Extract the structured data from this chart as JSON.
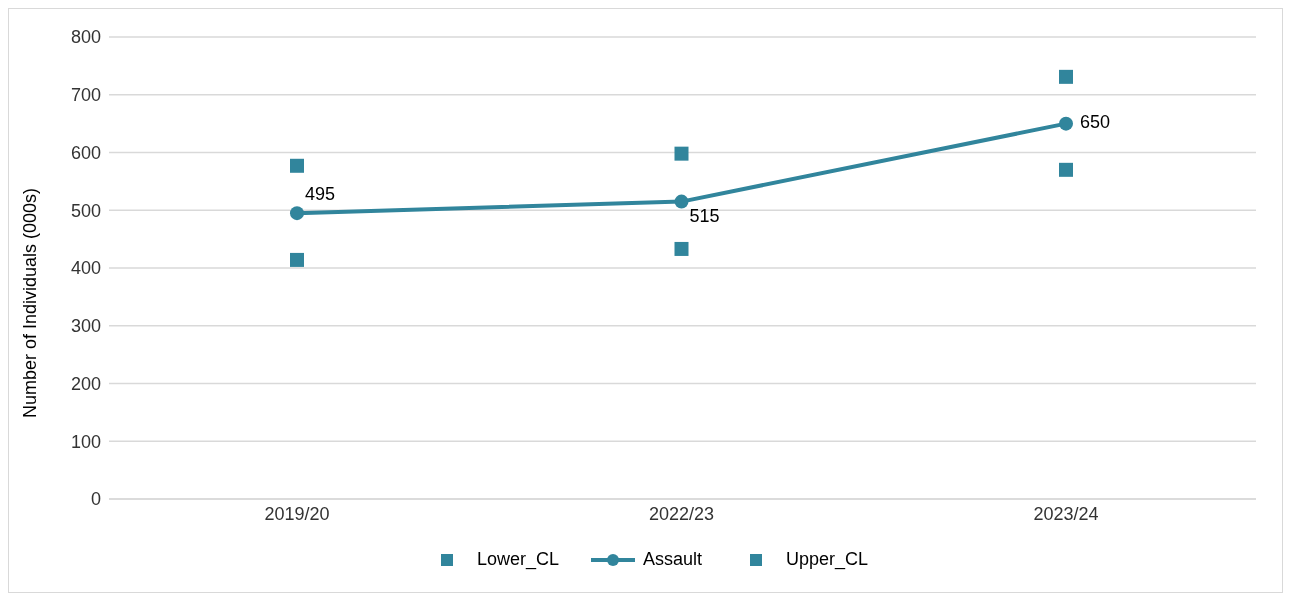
{
  "chart_data": {
    "type": "line",
    "ylabel": "Number of Individuals (000s)",
    "categories": [
      "2019/20",
      "2022/23",
      "2023/24"
    ],
    "series": [
      {
        "name": "Lower_CL",
        "type": "scatter",
        "marker": "square",
        "color": "#31859c",
        "values": [
          414,
          433,
          570
        ]
      },
      {
        "name": "Assault",
        "marker": "circle",
        "color": "#31859c",
        "values": [
          495,
          515,
          650
        ],
        "value_labels": [
          "495",
          "515",
          "650"
        ]
      },
      {
        "name": "Upper_CL",
        "type": "scatter",
        "marker": "square",
        "color": "#31859c",
        "values": [
          577,
          598,
          731
        ]
      }
    ],
    "ylim": [
      0,
      800
    ],
    "yticks": [
      0,
      100,
      200,
      300,
      400,
      500,
      600,
      700,
      800
    ],
    "grid": "y",
    "legend": "bottom"
  }
}
